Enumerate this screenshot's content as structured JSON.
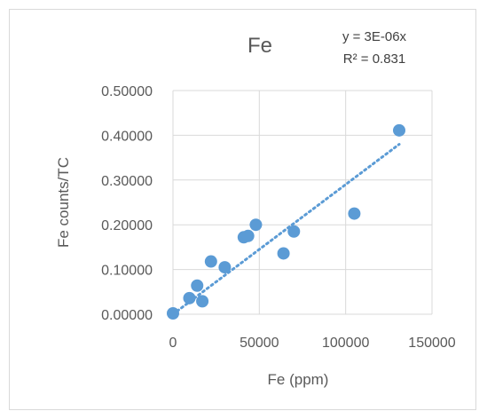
{
  "chart_data": {
    "type": "scatter",
    "title": "Fe",
    "xlabel": "Fe (ppm)",
    "ylabel": "Fe counts/TC",
    "xlim": [
      0,
      150000
    ],
    "ylim": [
      0,
      0.5
    ],
    "x_ticks": [
      "0",
      "50000",
      "100000",
      "150000"
    ],
    "y_ticks": [
      "0.00000",
      "0.10000",
      "0.20000",
      "0.30000",
      "0.40000",
      "0.50000"
    ],
    "grid": true,
    "marker_color": "#5b9bd5",
    "trendline": {
      "style": "dotted",
      "equation": "y = 3E-06x",
      "r_squared": "R² = 0.831",
      "slope": 2.9e-06
    },
    "points": [
      {
        "x": 0,
        "y": 0.002
      },
      {
        "x": 9500,
        "y": 0.036
      },
      {
        "x": 14000,
        "y": 0.064
      },
      {
        "x": 17000,
        "y": 0.029
      },
      {
        "x": 22000,
        "y": 0.118
      },
      {
        "x": 30000,
        "y": 0.105
      },
      {
        "x": 41000,
        "y": 0.172
      },
      {
        "x": 43500,
        "y": 0.175
      },
      {
        "x": 48000,
        "y": 0.2
      },
      {
        "x": 64000,
        "y": 0.136
      },
      {
        "x": 70000,
        "y": 0.185
      },
      {
        "x": 105000,
        "y": 0.225
      },
      {
        "x": 131000,
        "y": 0.411
      }
    ]
  }
}
